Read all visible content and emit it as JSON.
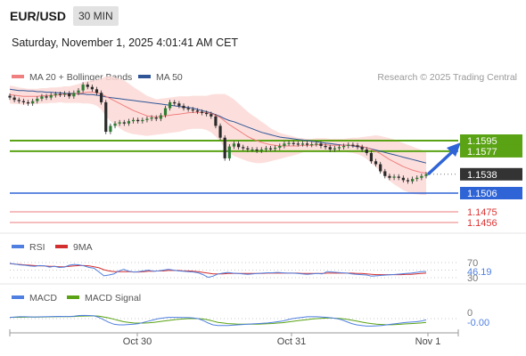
{
  "header": {
    "symbol": "EUR/USD",
    "timeframe": "30 MIN",
    "datetime": "Saturday, November 1, 2025 4:01:41 AM CET"
  },
  "legend": {
    "ma20_label": "MA 20 + Bollinger Bands",
    "ma50_label": "MA 50",
    "copyright": "Research © 2025 Trading Central",
    "rsi_label": "RSI",
    "rsi_ma_label": "9MA",
    "macd_label": "MACD",
    "macd_signal_label": "MACD Signal"
  },
  "colors": {
    "ma20": "#f08080",
    "ma50": "#2f5597",
    "bollinger_fill": "#fbd9d6",
    "candle": "#2e7d32",
    "resistance": "#5aa314",
    "support": "#2f64d6",
    "lower_support": "#e05555",
    "last_price": "#333333",
    "macd": "#4f7fe0",
    "signal": "#5aa314",
    "rsi": "#4f7fe0",
    "rsi_ma": "#d32f2f"
  },
  "chart_data": [
    {
      "type": "candlestick",
      "panel": "price",
      "y_axis_labels": [
        "1.1595",
        "1.1577",
        "1.1538",
        "1.1506",
        "1.1475",
        "1.1456"
      ],
      "levels": [
        {
          "value": 1.1595,
          "label": "1.1595",
          "kind": "resistance"
        },
        {
          "value": 1.1577,
          "label": "1.1577",
          "kind": "resistance"
        },
        {
          "value": 1.1538,
          "label": "1.1538",
          "kind": "last"
        },
        {
          "value": 1.1506,
          "label": "1.1506",
          "kind": "support"
        },
        {
          "value": 1.1475,
          "label": "1.1475",
          "kind": "support"
        },
        {
          "value": 1.1456,
          "label": "1.1456",
          "kind": "support"
        }
      ],
      "x_tick_labels": [
        "Oct 30",
        "Oct 31",
        "Nov 1"
      ],
      "close": [
        1.1668,
        1.1664,
        1.1662,
        1.166,
        1.1658,
        1.1662,
        1.1666,
        1.167,
        1.1668,
        1.1672,
        1.1674,
        1.1673,
        1.1675,
        1.167,
        1.1676,
        1.168,
        1.169,
        1.1686,
        1.1682,
        1.1676,
        1.166,
        1.161,
        1.162,
        1.1624,
        1.1626,
        1.1624,
        1.1628,
        1.163,
        1.1628,
        1.163,
        1.1632,
        1.1634,
        1.1632,
        1.1638,
        1.165,
        1.166,
        1.1658,
        1.1654,
        1.165,
        1.1648,
        1.1646,
        1.1644,
        1.1642,
        1.164,
        1.1636,
        1.162,
        1.16,
        1.1565,
        1.1585,
        1.159,
        1.1584,
        1.1582,
        1.158,
        1.158,
        1.1578,
        1.158,
        1.1582,
        1.1581,
        1.1583,
        1.1586,
        1.159,
        1.1591,
        1.159,
        1.1589,
        1.159,
        1.1588,
        1.1589,
        1.159,
        1.1586,
        1.1584,
        1.158,
        1.1582,
        1.1584,
        1.1586,
        1.1588,
        1.1587,
        1.1584,
        1.158,
        1.1574,
        1.156,
        1.1555,
        1.1543,
        1.1535,
        1.1532,
        1.1534,
        1.1532,
        1.1528,
        1.1526,
        1.153,
        1.1532,
        1.1535,
        1.1538
      ],
      "ma20": [
        1.1673,
        1.1672,
        1.1671,
        1.167,
        1.167,
        1.167,
        1.167,
        1.1671,
        1.1671,
        1.1672,
        1.1672,
        1.1673,
        1.1673,
        1.1673,
        1.1674,
        1.1675,
        1.1676,
        1.1677,
        1.1677,
        1.1676,
        1.1674,
        1.167,
        1.1666,
        1.1662,
        1.1658,
        1.1654,
        1.165,
        1.1646,
        1.1643,
        1.164,
        1.1637,
        1.1636,
        1.1635,
        1.1636,
        1.1637,
        1.1638,
        1.1639,
        1.164,
        1.1641,
        1.1642,
        1.1643,
        1.1643,
        1.1643,
        1.1642,
        1.1641,
        1.1638,
        1.1634,
        1.1628,
        1.1622,
        1.1617,
        1.1612,
        1.1607,
        1.1602,
        1.1598,
        1.1595,
        1.1592,
        1.159,
        1.1588,
        1.1587,
        1.1586,
        1.1586,
        1.1586,
        1.1586,
        1.1586,
        1.1587,
        1.1587,
        1.1587,
        1.1588,
        1.1588,
        1.1588,
        1.1587,
        1.1587,
        1.1587,
        1.1587,
        1.1587,
        1.1587,
        1.1586,
        1.1585,
        1.1583,
        1.158,
        1.1577,
        1.1573,
        1.1568,
        1.1563,
        1.1559,
        1.1555,
        1.1551,
        1.1548,
        1.1545,
        1.1543,
        1.1541,
        1.154
      ],
      "ma50": [
        1.1682,
        1.1681,
        1.168,
        1.168,
        1.1679,
        1.1679,
        1.1678,
        1.1678,
        1.1677,
        1.1677,
        1.1676,
        1.1676,
        1.1675,
        1.1675,
        1.1675,
        1.1674,
        1.1674,
        1.1673,
        1.1673,
        1.1672,
        1.1671,
        1.1669,
        1.1668,
        1.1667,
        1.1666,
        1.1665,
        1.1664,
        1.1663,
        1.1662,
        1.1661,
        1.166,
        1.1659,
        1.1658,
        1.1657,
        1.1656,
        1.1655,
        1.1654,
        1.1653,
        1.1652,
        1.1651,
        1.165,
        1.1648,
        1.1646,
        1.1644,
        1.1642,
        1.1639,
        1.1636,
        1.1632,
        1.1629,
        1.1627,
        1.1624,
        1.1621,
        1.1618,
        1.1615,
        1.1612,
        1.1609,
        1.1607,
        1.1605,
        1.1603,
        1.1601,
        1.16,
        1.1599,
        1.1598,
        1.1597,
        1.1596,
        1.1595,
        1.1594,
        1.1593,
        1.1592,
        1.1591,
        1.159,
        1.1589,
        1.1588,
        1.1587,
        1.1587,
        1.1586,
        1.1585,
        1.1584,
        1.1583,
        1.1581,
        1.1579,
        1.1577,
        1.1575,
        1.1573,
        1.1571,
        1.1569,
        1.1567,
        1.1565,
        1.1563,
        1.1561,
        1.1559,
        1.1557
      ],
      "bollinger_width": [
        0.0015,
        0.0015,
        0.0014,
        0.0014,
        0.0013,
        0.0013,
        0.0013,
        0.0013,
        0.0013,
        0.0013,
        0.0013,
        0.0013,
        0.0014,
        0.0014,
        0.0015,
        0.0016,
        0.0018,
        0.0019,
        0.002,
        0.0022,
        0.0026,
        0.0034,
        0.0038,
        0.004,
        0.0042,
        0.0043,
        0.0042,
        0.004,
        0.0038,
        0.0036,
        0.0034,
        0.0032,
        0.003,
        0.003,
        0.003,
        0.003,
        0.003,
        0.003,
        0.0029,
        0.0028,
        0.0028,
        0.0028,
        0.0028,
        0.0029,
        0.0032,
        0.0036,
        0.004,
        0.0046,
        0.0048,
        0.0048,
        0.0046,
        0.0044,
        0.0042,
        0.004,
        0.0038,
        0.0035,
        0.0032,
        0.0028,
        0.0025,
        0.0022,
        0.002,
        0.0018,
        0.0016,
        0.0014,
        0.0012,
        0.0011,
        0.0011,
        0.0011,
        0.0011,
        0.0011,
        0.0011,
        0.0011,
        0.0011,
        0.0011,
        0.0012,
        0.0013,
        0.0014,
        0.0016,
        0.0019,
        0.0023,
        0.0027,
        0.003,
        0.0033,
        0.0036,
        0.0038,
        0.0039,
        0.004,
        0.004,
        0.004,
        0.0039,
        0.0038,
        0.0037
      ]
    },
    {
      "type": "line",
      "panel": "rsi",
      "y_tick_labels": [
        "70",
        "30"
      ],
      "value_label": "46.19",
      "ylim": [
        30,
        70
      ],
      "series": [
        {
          "name": "RSI",
          "values": [
            68,
            66,
            64,
            63,
            61,
            60,
            62,
            61,
            58,
            60,
            57,
            58,
            63,
            65,
            64,
            61,
            57,
            55,
            45,
            35,
            37,
            40,
            48,
            52,
            47,
            45,
            46,
            48,
            50,
            47,
            48,
            50,
            52,
            50,
            48,
            47,
            46,
            45,
            43,
            38,
            31,
            34,
            40,
            42,
            44,
            42,
            41,
            40,
            39,
            40,
            41,
            42,
            43,
            43,
            44,
            43,
            42,
            42,
            41,
            40,
            39,
            40,
            41,
            40,
            46,
            45,
            44,
            43,
            42,
            40,
            39,
            38,
            37,
            34,
            35,
            36,
            37,
            38,
            39,
            40,
            41,
            42,
            44,
            46,
            46.19
          ]
        },
        {
          "name": "9MA",
          "values": [
            67,
            66,
            65,
            64,
            63,
            62,
            61,
            61,
            60,
            60,
            59,
            59,
            60,
            61,
            62,
            62,
            61,
            59,
            56,
            51,
            48,
            46,
            46,
            46,
            46,
            45,
            45,
            46,
            47,
            47,
            48,
            48,
            49,
            49,
            49,
            48,
            48,
            47,
            46,
            44,
            42,
            40,
            40,
            40,
            41,
            41,
            41,
            41,
            41,
            41,
            41,
            41,
            42,
            42,
            42,
            42,
            42,
            42,
            42,
            41,
            41,
            41,
            41,
            41,
            42,
            42,
            42,
            42,
            42,
            42,
            41,
            41,
            40,
            39,
            38,
            38,
            38,
            38,
            38,
            38,
            39,
            39,
            40,
            41,
            42
          ]
        }
      ]
    },
    {
      "type": "line",
      "panel": "macd",
      "y_tick_labels": [
        "0"
      ],
      "value_label": "-0.00",
      "series": [
        {
          "name": "MACD",
          "values": [
            0.0002,
            0.00025,
            0.0003,
            0.0003,
            0.00028,
            0.00026,
            0.00028,
            0.0003,
            0.00032,
            0.00035,
            0.00036,
            0.00035,
            0.00034,
            0.0004,
            0.0005,
            0.00052,
            0.0005,
            0.00045,
            0.0002,
            -0.0002,
            -0.0006,
            -0.0009,
            -0.001,
            -0.001,
            -0.00095,
            -0.0009,
            -0.0008,
            -0.0006,
            -0.0004,
            -0.0002,
            0.0,
            0.0001,
            0.0002,
            0.0002,
            0.0002,
            0.00018,
            0.00015,
            0.0001,
            0.0,
            -0.0003,
            -0.0007,
            -0.001,
            -0.0011,
            -0.0011,
            -0.0011,
            -0.00105,
            -0.001,
            -0.00095,
            -0.0009,
            -0.00085,
            -0.0008,
            -0.00075,
            -0.0007,
            -0.0006,
            -0.0005,
            -0.0004,
            -0.0002,
            0.0,
            0.0001,
            0.0002,
            0.0003,
            0.0003,
            0.0003,
            0.00025,
            0.0002,
            0.0001,
            0.0,
            -0.0002,
            -0.0005,
            -0.0008,
            -0.001,
            -0.0011,
            -0.0012,
            -0.0012,
            -0.00115,
            -0.0011,
            -0.001,
            -0.0009,
            -0.0008,
            -0.0007,
            -0.0006,
            -0.00055,
            -0.0005,
            -0.0004,
            -0.0002
          ]
        },
        {
          "name": "MACD Signal",
          "values": [
            0.0002,
            0.00021,
            0.00022,
            0.00023,
            0.00024,
            0.00025,
            0.00026,
            0.00027,
            0.00028,
            0.0003,
            0.00031,
            0.00032,
            0.00033,
            0.00035,
            0.00038,
            0.00041,
            0.00043,
            0.00044,
            0.00038,
            0.00026,
            0.0001,
            -0.0001,
            -0.0003,
            -0.0005,
            -0.0006,
            -0.0007,
            -0.00072,
            -0.00072,
            -0.00068,
            -0.0006,
            -0.0005,
            -0.0004,
            -0.0003,
            -0.0002,
            -0.0001,
            -5e-05,
            0.0,
            2e-05,
            0.0,
            -6e-05,
            -0.0002,
            -0.0004,
            -0.0006,
            -0.0007,
            -0.0008,
            -0.00085,
            -0.0009,
            -0.0009,
            -0.0009,
            -0.0009,
            -0.00088,
            -0.00086,
            -0.00082,
            -0.00078,
            -0.00072,
            -0.00065,
            -0.00056,
            -0.00045,
            -0.00035,
            -0.00025,
            -0.00015,
            -6e-05,
            0.0,
            5e-05,
            8e-05,
            8e-05,
            6e-05,
            0.0,
            -0.0001,
            -0.00025,
            -0.0004,
            -0.00055,
            -0.0007,
            -0.0008,
            -0.0009,
            -0.00095,
            -0.00098,
            -0.00098,
            -0.00095,
            -0.0009,
            -0.00085,
            -0.0008,
            -0.00075,
            -0.0007,
            -0.0006
          ]
        }
      ]
    }
  ]
}
